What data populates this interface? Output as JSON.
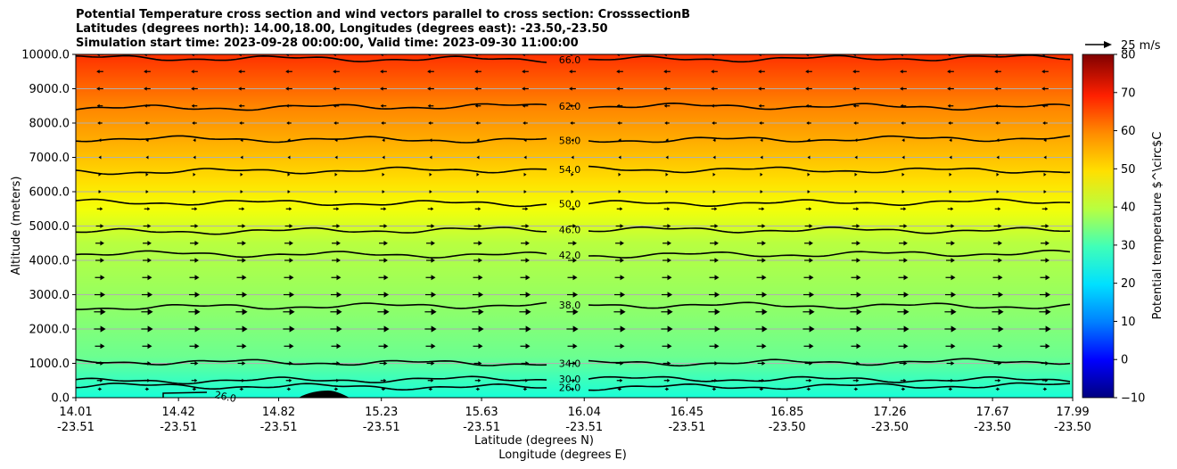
{
  "titles": [
    "Potential Temperature cross section and wind vectors parallel to cross section: CrosssectionB",
    "Latitudes (degrees north): 14.00,18.00, Longitudes (degrees east): -23.50,-23.50",
    "Simulation start time: 2023-09-28 00:00:00, Valid time: 2023-09-30 11:00:00"
  ],
  "chart_data": {
    "type": "contour",
    "xlabel": "Latitude (degrees N)",
    "xlabel2": "Longitude (degrees E)",
    "ylabel": "Altitude (meters)",
    "xlim": [
      14.01,
      17.99
    ],
    "ylim": [
      0,
      10000
    ],
    "x_ticks": [
      {
        "lat": "14.01",
        "lon": "-23.51"
      },
      {
        "lat": "14.42",
        "lon": "-23.51"
      },
      {
        "lat": "14.82",
        "lon": "-23.51"
      },
      {
        "lat": "15.23",
        "lon": "-23.51"
      },
      {
        "lat": "15.63",
        "lon": "-23.51"
      },
      {
        "lat": "16.04",
        "lon": "-23.51"
      },
      {
        "lat": "16.45",
        "lon": "-23.51"
      },
      {
        "lat": "16.85",
        "lon": "-23.50"
      },
      {
        "lat": "17.26",
        "lon": "-23.50"
      },
      {
        "lat": "17.67",
        "lon": "-23.50"
      },
      {
        "lat": "17.99",
        "lon": "-23.50"
      }
    ],
    "y_ticks": [
      "0.0",
      "1000.0",
      "2000.0",
      "3000.0",
      "4000.0",
      "5000.0",
      "6000.0",
      "7000.0",
      "8000.0",
      "9000.0",
      "10000.0"
    ],
    "grid": "horizontal",
    "colorbar": {
      "label": "Potential temperature $^\\circ$C",
      "min": -10,
      "max": 80,
      "ticks": [
        "−10",
        "0",
        "10",
        "20",
        "30",
        "40",
        "50",
        "60",
        "70",
        "80"
      ],
      "colormap": "jet"
    },
    "contours": [
      {
        "label": "26.0",
        "value": 26,
        "altitude": 300
      },
      {
        "label": "30.0",
        "value": 30,
        "altitude": 550
      },
      {
        "label": "34.0",
        "value": 34,
        "altitude": 1000
      },
      {
        "label": "38.0",
        "value": 38,
        "altitude": 2700
      },
      {
        "label": "42.0",
        "value": 42,
        "altitude": 4150
      },
      {
        "label": "46.0",
        "value": 46,
        "altitude": 4900
      },
      {
        "label": "50.0",
        "value": 50,
        "altitude": 5650
      },
      {
        "label": "54.0",
        "value": 54,
        "altitude": 6650
      },
      {
        "label": "58.0",
        "value": 58,
        "altitude": 7500
      },
      {
        "label": "62.0",
        "value": 62,
        "altitude": 8500
      },
      {
        "label": "66.0",
        "value": 66,
        "altitude": 9850
      }
    ],
    "small_contour_label": "26.0",
    "wind_reference": "25 m/s",
    "wind_rows": [
      {
        "altitude": 250,
        "dir": 1,
        "mag": 0.2
      },
      {
        "altitude": 500,
        "dir": 1,
        "mag": 0.3
      },
      {
        "altitude": 1000,
        "dir": 1,
        "mag": 0.4
      },
      {
        "altitude": 1500,
        "dir": 1,
        "mag": 0.5
      },
      {
        "altitude": 2000,
        "dir": 1,
        "mag": 0.6
      },
      {
        "altitude": 2500,
        "dir": 1,
        "mag": 0.6
      },
      {
        "altitude": 3000,
        "dir": 1,
        "mag": 0.55
      },
      {
        "altitude": 3500,
        "dir": 1,
        "mag": 0.5
      },
      {
        "altitude": 4000,
        "dir": 1,
        "mag": 0.45
      },
      {
        "altitude": 4500,
        "dir": 1,
        "mag": 0.45
      },
      {
        "altitude": 5000,
        "dir": 1,
        "mag": 0.4
      },
      {
        "altitude": 5500,
        "dir": 1,
        "mag": 0.3
      },
      {
        "altitude": 6000,
        "dir": 1,
        "mag": 0.15
      },
      {
        "altitude": 6500,
        "dir": 1,
        "mag": 0.08
      },
      {
        "altitude": 7000,
        "dir": -1,
        "mag": 0.1
      },
      {
        "altitude": 7500,
        "dir": -1,
        "mag": 0.15
      },
      {
        "altitude": 8000,
        "dir": -1,
        "mag": 0.25
      },
      {
        "altitude": 8500,
        "dir": -1,
        "mag": 0.3
      },
      {
        "altitude": 9000,
        "dir": -1,
        "mag": 0.35
      },
      {
        "altitude": 9500,
        "dir": -1,
        "mag": 0.35
      },
      {
        "altitude": 10000,
        "dir": -1,
        "mag": 0.35
      }
    ]
  }
}
